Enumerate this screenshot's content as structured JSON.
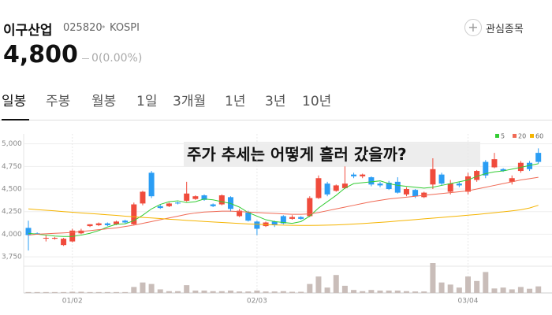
{
  "header": {
    "name": "이구산업",
    "code": "025820",
    "separator": "•",
    "market": "KOSPI",
    "watch": "관심종목"
  },
  "price": {
    "value": "4,800",
    "change": "0(0.00%)"
  },
  "tabs": [
    "일봉",
    "주봉",
    "월봉",
    "1일",
    "3개월",
    "1년",
    "3년",
    "10년"
  ],
  "overlay_text": "주가 추세는 어떻게 흘러 갔을까?",
  "chart_data": {
    "type": "candlestick",
    "categories": [
      null,
      null,
      null,
      null,
      null,
      "01/02",
      null,
      null,
      null,
      null,
      null,
      null,
      null,
      null,
      null,
      null,
      null,
      null,
      null,
      null,
      null,
      null,
      null,
      null,
      null,
      null,
      "02/03",
      null,
      null,
      null,
      null,
      null,
      null,
      null,
      null,
      null,
      null,
      null,
      null,
      null,
      null,
      null,
      null,
      null,
      null,
      null,
      null,
      null,
      null,
      null,
      "03/04",
      null,
      null,
      null,
      null,
      null,
      null,
      null,
      null
    ],
    "open": [
      4070,
      4010,
      3960,
      3950,
      3880,
      3920,
      4010,
      4090,
      4100,
      4120,
      4110,
      4150,
      4110,
      4340,
      4680,
      4310,
      4310,
      4350,
      4370,
      4390,
      4430,
      4330,
      4330,
      4410,
      4200,
      4240,
      4140,
      4090,
      4140,
      4200,
      4170,
      4190,
      4200,
      4400,
      4560,
      4480,
      4510,
      4660,
      4640,
      4630,
      4560,
      4570,
      4580,
      4440,
      4490,
      4410,
      4550,
      4660,
      4470,
      4560,
      4470,
      4600,
      4800,
      4740,
      4720,
      4580,
      4700,
      4790,
      4900
    ],
    "high": [
      4150,
      4020,
      3990,
      3970,
      3960,
      4060,
      4060,
      4110,
      4130,
      4130,
      4150,
      4160,
      4350,
      4480,
      4700,
      4330,
      4350,
      4360,
      4580,
      4430,
      4440,
      4340,
      4440,
      4420,
      4280,
      4260,
      4150,
      4140,
      4150,
      4210,
      4210,
      4200,
      4420,
      4650,
      4580,
      4550,
      4750,
      4680,
      4670,
      4640,
      4580,
      4590,
      4630,
      4520,
      4500,
      4470,
      4840,
      4680,
      4600,
      4580,
      4680,
      4710,
      4820,
      4900,
      4730,
      4650,
      4810,
      4810,
      4950
    ],
    "low": [
      3820,
      4000,
      3920,
      3940,
      3870,
      3910,
      4000,
      4080,
      4090,
      4090,
      4100,
      4120,
      4100,
      4320,
      4400,
      4280,
      4300,
      4330,
      4360,
      4380,
      4370,
      4300,
      4320,
      4250,
      4190,
      4140,
      3990,
      4080,
      4080,
      4110,
      4160,
      4160,
      4190,
      4390,
      4420,
      4470,
      4500,
      4620,
      4620,
      4530,
      4520,
      4490,
      4450,
      4420,
      4400,
      4400,
      4500,
      4540,
      4440,
      4520,
      4440,
      4580,
      4620,
      4730,
      4690,
      4550,
      4680,
      4700,
      4780
    ],
    "close": [
      3990,
      4000,
      3960,
      3960,
      3950,
      4040,
      4040,
      4110,
      4120,
      4100,
      4140,
      4130,
      4330,
      4470,
      4420,
      4290,
      4340,
      4340,
      4450,
      4420,
      4380,
      4310,
      4430,
      4280,
      4260,
      4150,
      4060,
      4130,
      4100,
      4120,
      4190,
      4170,
      4400,
      4620,
      4440,
      4540,
      4560,
      4640,
      4660,
      4550,
      4540,
      4500,
      4460,
      4500,
      4420,
      4460,
      4720,
      4560,
      4560,
      4540,
      4640,
      4700,
      4650,
      4830,
      4700,
      4620,
      4790,
      4720,
      4800
    ],
    "volume": [
      3,
      3,
      3,
      3,
      3,
      4,
      4,
      3,
      3,
      3,
      3,
      3,
      20,
      35,
      30,
      12,
      6,
      6,
      26,
      8,
      8,
      6,
      6,
      8,
      5,
      5,
      8,
      5,
      5,
      6,
      4,
      4,
      30,
      55,
      18,
      60,
      24,
      10,
      6,
      10,
      8,
      8,
      8,
      6,
      5,
      5,
      100,
      35,
      28,
      18,
      55,
      40,
      70,
      15,
      18,
      12,
      20,
      14,
      22
    ],
    "volume_ylim": [
      0,
      100
    ],
    "series": [
      {
        "name": "5",
        "color": "#33cc33",
        "values": [
          4010,
          4000,
          3990,
          3980,
          3975,
          3975,
          3990,
          4010,
          4040,
          4080,
          4110,
          4115,
          4150,
          4210,
          4280,
          4330,
          4360,
          4370,
          4350,
          4360,
          4390,
          4380,
          4360,
          4340,
          4300,
          4240,
          4200,
          4160,
          4140,
          4130,
          4120,
          4140,
          4200,
          4290,
          4360,
          4430,
          4510,
          4560,
          4570,
          4580,
          4590,
          4560,
          4540,
          4530,
          4520,
          4510,
          4520,
          4540,
          4560,
          4580,
          4600,
          4640,
          4670,
          4690,
          4700,
          4720,
          4740,
          4760,
          4780
        ]
      },
      {
        "name": "20",
        "color": "#f06a55",
        "values": [
          3990,
          4000,
          4005,
          4010,
          4015,
          4020,
          4030,
          4040,
          4050,
          4060,
          4070,
          4085,
          4100,
          4120,
          4140,
          4160,
          4180,
          4200,
          4220,
          4235,
          4245,
          4250,
          4255,
          4255,
          4250,
          4245,
          4240,
          4235,
          4230,
          4225,
          4220,
          4220,
          4225,
          4240,
          4260,
          4280,
          4300,
          4320,
          4340,
          4360,
          4375,
          4390,
          4400,
          4410,
          4420,
          4430,
          4440,
          4450,
          4460,
          4470,
          4480,
          4500,
          4520,
          4540,
          4560,
          4580,
          4600,
          4615,
          4630
        ]
      },
      {
        "name": "60",
        "color": "#f5b400",
        "values": [
          4280,
          4272,
          4265,
          4258,
          4250,
          4243,
          4236,
          4229,
          4222,
          4215,
          4208,
          4200,
          4193,
          4186,
          4180,
          4173,
          4166,
          4160,
          4153,
          4147,
          4141,
          4135,
          4130,
          4124,
          4119,
          4114,
          4110,
          4106,
          4103,
          4100,
          4098,
          4097,
          4097,
          4098,
          4100,
          4103,
          4107,
          4112,
          4118,
          4124,
          4131,
          4138,
          4146,
          4154,
          4162,
          4170,
          4178,
          4186,
          4194,
          4202,
          4210,
          4218,
          4228,
          4238,
          4248,
          4258,
          4270,
          4290,
          4320
        ]
      }
    ],
    "up_color": "#f04b3c",
    "down_color": "#2a9df4",
    "volume_color": "#c9bdb9",
    "ylim": [
      3690,
      5110
    ],
    "yticks": [
      {
        "value": 3750,
        "label": "3,750"
      },
      {
        "value": 4000,
        "label": "4,000"
      },
      {
        "value": 4250,
        "label": "4,250"
      },
      {
        "value": 4500,
        "label": "4,500"
      },
      {
        "value": 4750,
        "label": "4,750"
      },
      {
        "value": 5000,
        "label": "5,000"
      }
    ],
    "grid": true
  }
}
